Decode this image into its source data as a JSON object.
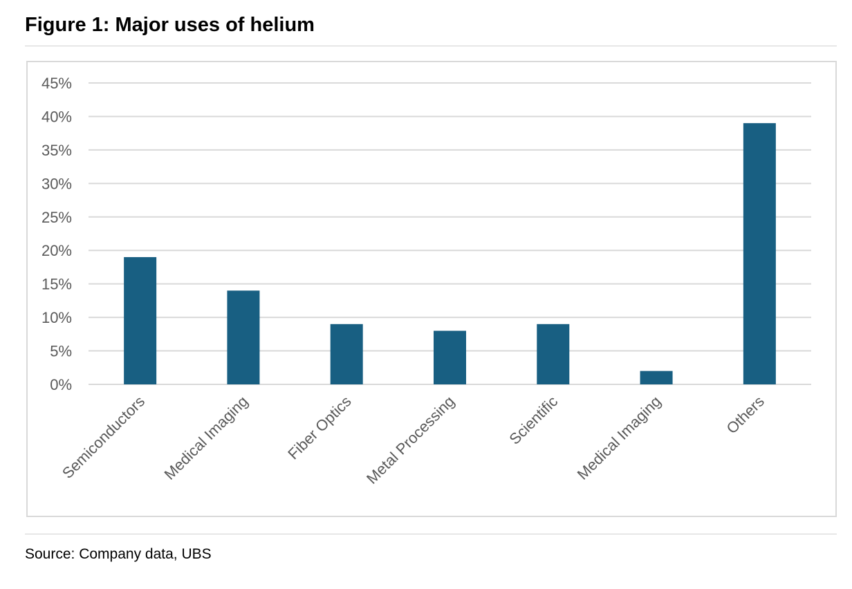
{
  "title": "Figure 1: Major uses of helium",
  "source": "Source: Company data, UBS",
  "chart_data": {
    "type": "bar",
    "title": "Figure 1: Major uses of helium",
    "categories": [
      "Semiconductors",
      "Medical Imaging",
      "Fiber Optics",
      "Metal Processing",
      "Scientific",
      "Medical Imaging",
      "Others"
    ],
    "values": [
      19,
      14,
      9,
      8,
      9,
      2,
      39
    ],
    "xlabel": "",
    "ylabel": "",
    "ylim": [
      0,
      45
    ],
    "yticks": [
      0,
      5,
      10,
      15,
      20,
      25,
      30,
      35,
      40,
      45
    ],
    "ytick_labels": [
      "0%",
      "5%",
      "10%",
      "15%",
      "20%",
      "25%",
      "30%",
      "35%",
      "40%",
      "45%"
    ],
    "grid": true,
    "legend": "none",
    "bar_color": "#185f82",
    "grid_color": "#d9d9d9"
  }
}
